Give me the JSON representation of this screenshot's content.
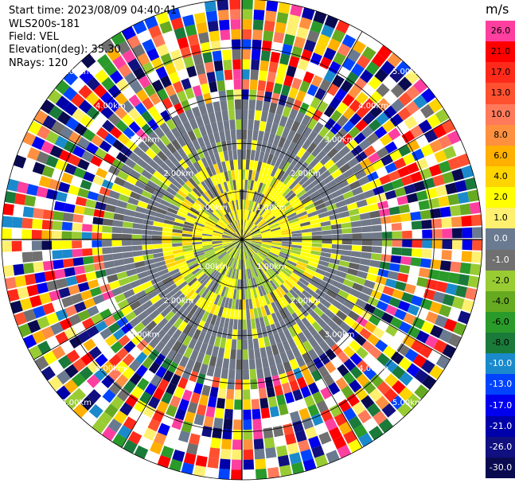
{
  "header": {
    "start_time": "Start time: 2023/08/09 04:40:41",
    "instrument": "WLS200s-181",
    "field": "Field: VEL",
    "elevation": "Elevation(deg): 35.30",
    "nrays": "NRays: 120"
  },
  "chart_data": {
    "type": "ppi-polar",
    "field": "VEL",
    "units": "m/s",
    "nrays": 120,
    "range_rings_km": [
      1.0,
      2.0,
      3.0,
      4.0,
      5.0
    ],
    "range_ring_labels": [
      "1.00km",
      "2.00km",
      "3.00km",
      "4.00km",
      "5.00km"
    ],
    "colorbar": {
      "label": "m/s",
      "ticks": [
        "26.0",
        "21.0",
        "17.0",
        "13.0",
        "10.0",
        "8.0",
        "6.0",
        "4.0",
        "2.0",
        "1.0",
        "0.0",
        "-1.0",
        "-2.0",
        "-4.0",
        "-6.0",
        "-8.0",
        "-10.0",
        "-13.0",
        "-17.0",
        "-21.0",
        "-26.0",
        "-30.0"
      ],
      "colors": [
        "#ff3fa0",
        "#ff0000",
        "#ff2a1a",
        "#ff5030",
        "#ff7a5a",
        "#ff9040",
        "#ffb000",
        "#ffd400",
        "#ffff00",
        "#fff070",
        "#6a7a90",
        "#707070",
        "#99cc33",
        "#66aa22",
        "#2a9a2a",
        "#1a7a3a",
        "#1a8acc",
        "#0044ff",
        "#0000ee",
        "#0000aa",
        "#101080",
        "#0a0a50"
      ]
    }
  }
}
